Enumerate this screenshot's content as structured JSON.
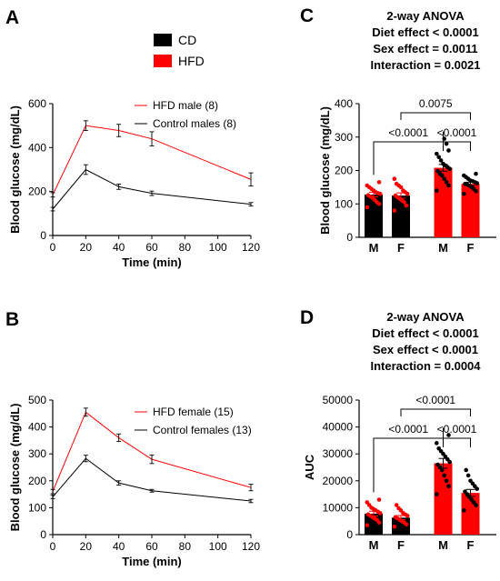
{
  "colors": {
    "cd": "#000000",
    "hfd": "#ff0000"
  },
  "global_legend": {
    "cd_label": "CD",
    "hfd_label": "HFD"
  },
  "chart_data": [
    {
      "panel": "A",
      "type": "line",
      "xlabel": "Time (min)",
      "ylabel": "Blood glucose (mg/dL)",
      "xlim": [
        0,
        120
      ],
      "ylim": [
        0,
        600
      ],
      "xticks": [
        "0",
        "20",
        "40",
        "60",
        "80",
        "100",
        "120"
      ],
      "yticks": [
        "0",
        "200",
        "400",
        "600"
      ],
      "x": [
        0,
        20,
        40,
        60,
        120
      ],
      "series": [
        {
          "name": "HFD male (8)",
          "color": "#ff0000",
          "values": [
            185,
            500,
            478,
            440,
            255
          ],
          "err": [
            10,
            22,
            28,
            32,
            30
          ]
        },
        {
          "name": "Control males (8)",
          "color": "#000000",
          "values": [
            120,
            300,
            222,
            192,
            142
          ],
          "err": [
            8,
            22,
            12,
            10,
            8
          ]
        }
      ],
      "legend_position": "top-right"
    },
    {
      "panel": "B",
      "type": "line",
      "xlabel": "Time (min)",
      "ylabel": "Blood glucose (mg/dL)",
      "xlim": [
        0,
        120
      ],
      "ylim": [
        0,
        500
      ],
      "xticks": [
        "0",
        "20",
        "40",
        "60",
        "80",
        "100",
        "120"
      ],
      "yticks": [
        "0",
        "100",
        "200",
        "300",
        "400",
        "500"
      ],
      "x": [
        0,
        20,
        40,
        60,
        120
      ],
      "series": [
        {
          "name": "HFD female (15)",
          "color": "#ff0000",
          "values": [
            160,
            455,
            360,
            280,
            175
          ],
          "err": [
            8,
            15,
            14,
            16,
            12
          ]
        },
        {
          "name": "Control females (13)",
          "color": "#000000",
          "values": [
            140,
            283,
            192,
            163,
            125
          ],
          "err": [
            6,
            12,
            8,
            5,
            6
          ]
        }
      ],
      "legend_position": "top-right"
    },
    {
      "panel": "C",
      "type": "bar",
      "title_lines": [
        "2-way ANOVA",
        "Diet effect < 0.0001",
        "Sex effect = 0.0011",
        "Interaction = 0.0021"
      ],
      "ylabel": "Blood glucose (mg/dL)",
      "ylim": [
        0,
        400
      ],
      "yticks": [
        "0",
        "100",
        "200",
        "300",
        "400"
      ],
      "categories": [
        "M",
        "F",
        "M",
        "F"
      ],
      "groups": [
        "CD",
        "CD",
        "HFD",
        "HFD"
      ],
      "values": [
        128,
        125,
        208,
        160
      ],
      "err": [
        7,
        8,
        10,
        5
      ],
      "points": [
        [
          90,
          100,
          105,
          112,
          118,
          122,
          126,
          130,
          132,
          135,
          140,
          145,
          150,
          155,
          165
        ],
        [
          80,
          95,
          105,
          110,
          115,
          120,
          125,
          130,
          135,
          140,
          150,
          155,
          160,
          175
        ],
        [
          140,
          155,
          165,
          175,
          185,
          190,
          198,
          205,
          210,
          215,
          220,
          230,
          240,
          250,
          260,
          280,
          295
        ],
        [
          130,
          138,
          145,
          150,
          155,
          158,
          160,
          162,
          165,
          168,
          170,
          175,
          180,
          185,
          190
        ]
      ],
      "comparisons": [
        {
          "from": 0,
          "to": 2,
          "label": "<0.0001"
        },
        {
          "from": 2,
          "to": 3,
          "label": "<0.0001"
        },
        {
          "from": 1,
          "to": 3,
          "label": "0.0075"
        }
      ]
    },
    {
      "panel": "D",
      "type": "bar",
      "title_lines": [
        "2-way ANOVA",
        "Diet effect < 0.0001",
        "Sex effect < 0.0001",
        "Interaction = 0.0004"
      ],
      "ylabel": "AUC",
      "ylim": [
        0,
        50000
      ],
      "yticks": [
        "0",
        "10000",
        "20000",
        "30000",
        "40000",
        "50000"
      ],
      "categories": [
        "M",
        "F",
        "M",
        "F"
      ],
      "groups": [
        "CD",
        "CD",
        "HFD",
        "HFD"
      ],
      "values": [
        7800,
        6300,
        26500,
        15500
      ],
      "err": [
        900,
        800,
        1800,
        1300
      ],
      "points": [
        [
          3500,
          4500,
          5500,
          6000,
          6500,
          7000,
          7500,
          8000,
          8500,
          9000,
          9500,
          10000,
          11000,
          12000,
          13000
        ],
        [
          3000,
          3800,
          4500,
          5000,
          5500,
          6000,
          6500,
          7000,
          7500,
          8000,
          9000,
          9800,
          11000
        ],
        [
          15000,
          18000,
          20000,
          22000,
          24000,
          25000,
          26000,
          27000,
          28000,
          29000,
          30000,
          31000,
          32000,
          34000,
          37000
        ],
        [
          9000,
          11000,
          12000,
          13000,
          14000,
          15000,
          16000,
          17000,
          18000,
          19000,
          20000,
          22000,
          24000
        ]
      ],
      "comparisons": [
        {
          "from": 0,
          "to": 2,
          "label": "<0.0001"
        },
        {
          "from": 2,
          "to": 3,
          "label": "<0.0001"
        },
        {
          "from": 1,
          "to": 3,
          "label": "<0.0001"
        }
      ]
    }
  ]
}
